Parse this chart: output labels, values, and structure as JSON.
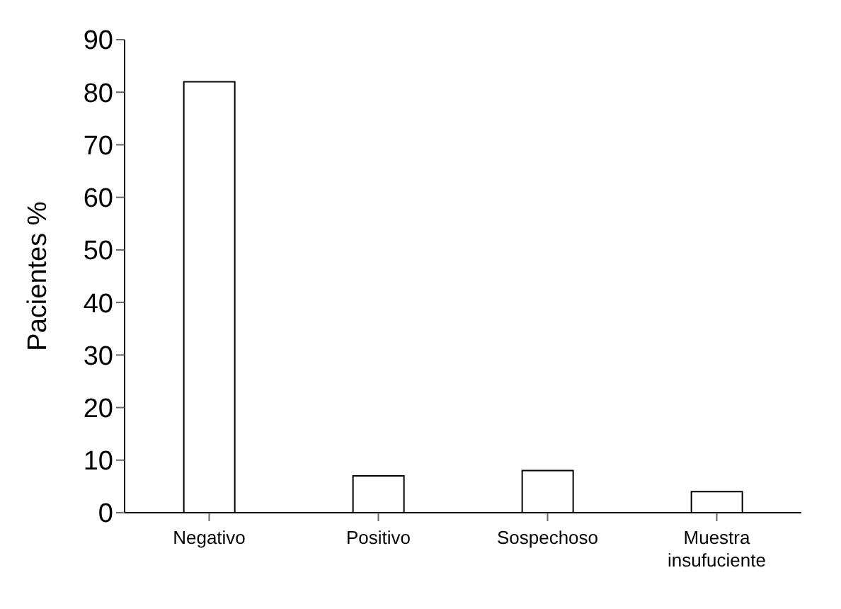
{
  "chart_data": {
    "type": "bar",
    "ylabel": "Pacientes %",
    "categories": [
      "Negativo",
      "Positivo",
      "Sospechoso",
      "Muestra insufuciente"
    ],
    "values": [
      82,
      7,
      8,
      4
    ],
    "color": "#ffffff",
    "ylim": [
      0,
      90
    ],
    "yticks": [
      0,
      10,
      20,
      30,
      40,
      50,
      60,
      70,
      80,
      90
    ],
    "grid": false
  }
}
